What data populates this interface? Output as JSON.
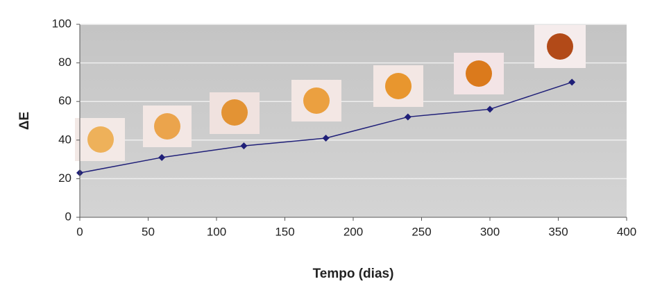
{
  "chart_data": {
    "type": "line",
    "x": [
      0,
      60,
      120,
      180,
      240,
      300,
      360
    ],
    "values": [
      23,
      31,
      37,
      41,
      52,
      56,
      70
    ],
    "color": "#1f1f78",
    "xlim": [
      0,
      400
    ],
    "xticks": [
      0,
      50,
      100,
      150,
      200,
      250,
      300,
      350,
      400
    ],
    "ylim": [
      0,
      100
    ],
    "yticks": [
      0,
      20,
      40,
      60,
      80,
      100
    ],
    "grid": true,
    "x_label": "Tempo (dias)",
    "y_label": "ΔE"
  }
}
